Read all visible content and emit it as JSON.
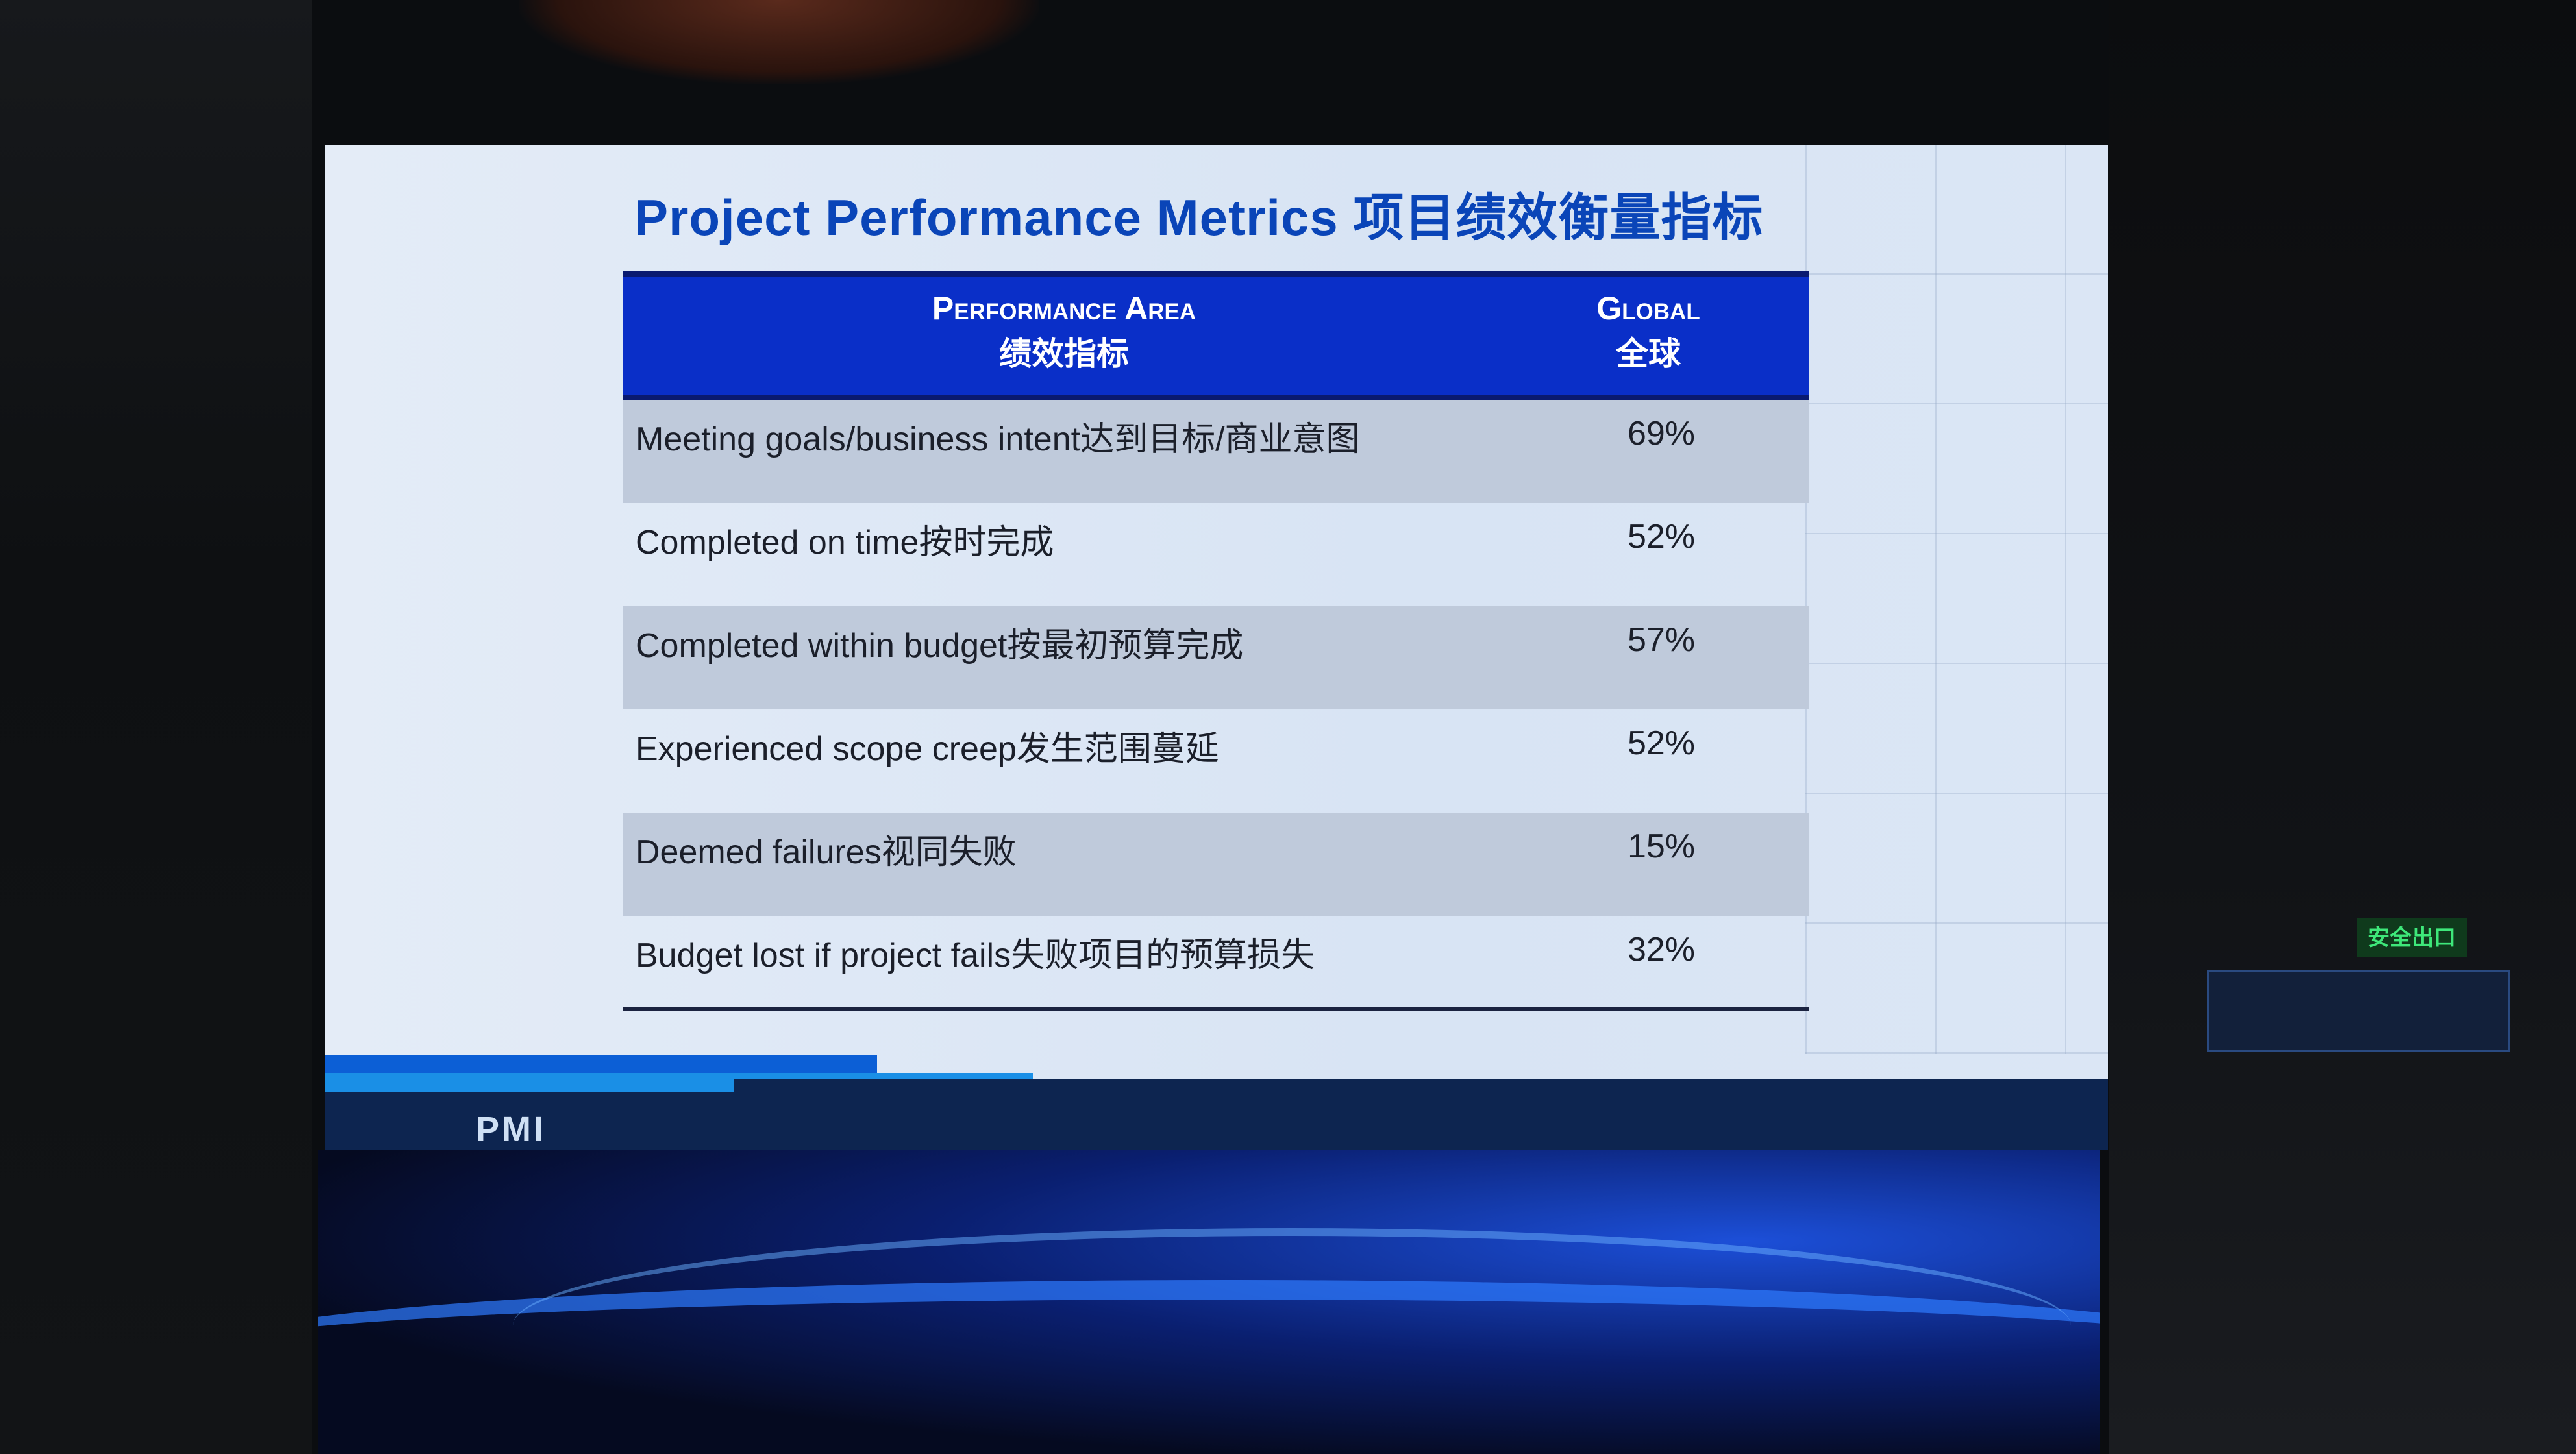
{
  "slide": {
    "title": "Project Performance Metrics 项目绩效衡量指标",
    "table": {
      "headers": [
        {
          "en": "Performance Area",
          "zh": "绩效指标"
        },
        {
          "en": "Global",
          "zh": "全球"
        }
      ],
      "rows": [
        {
          "label": "Meeting goals/business intent达到目标/商业意图",
          "value": "69%"
        },
        {
          "label": "Completed on time按时完成",
          "value": "52%"
        },
        {
          "label": "Completed within budget按最初预算完成",
          "value": "57%"
        },
        {
          "label": "Experienced scope creep发生范围蔓延",
          "value": "52%"
        },
        {
          "label": "Deemed failures视同失败",
          "value": "15%"
        },
        {
          "label": "Budget lost if project fails失败项目的预算损失",
          "value": "32%"
        }
      ]
    },
    "logo": "PMI",
    "colors": {
      "header": "#0a2fc8",
      "title": "#0a45b8",
      "footer": "#0d2550"
    }
  },
  "room": {
    "exit_sign": "安全出口"
  }
}
